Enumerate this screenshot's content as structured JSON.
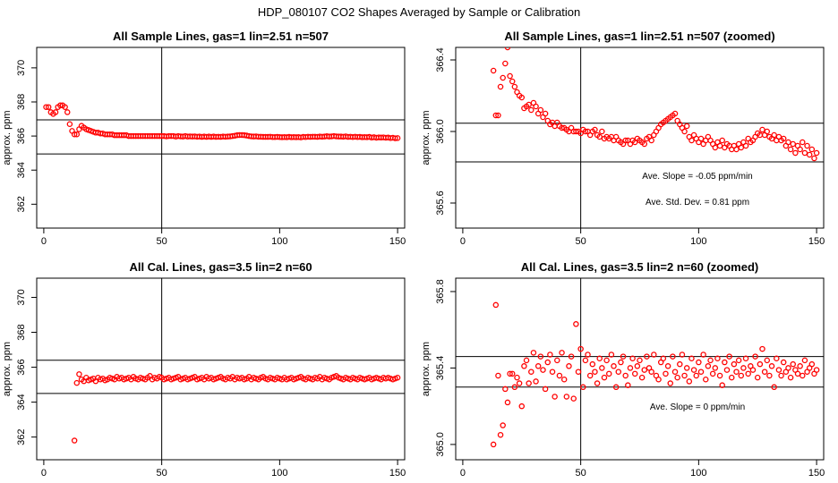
{
  "figure_title": "HDP_080107  CO2 Shapes Averaged by Sample or Calibration",
  "colors": {
    "points": "#ff0000",
    "lines": "#000000"
  },
  "chart_data": [
    {
      "type": "scatter",
      "title": "All Sample Lines, gas=1 lin=2.51 n=507",
      "xlabel": "",
      "ylabel": "approx. ppm",
      "xlim": [
        -3,
        153
      ],
      "ylim": [
        360.6,
        371.2
      ],
      "x_ticks": [
        "0",
        "50",
        "100",
        "150"
      ],
      "y_ticks": [
        "362",
        "364",
        "366",
        "368",
        "370"
      ],
      "vline_x": 50,
      "hlines_y": [
        366.95,
        364.95
      ],
      "annotations": [],
      "x": [
        1,
        2,
        3,
        4,
        5,
        6,
        7,
        8,
        9,
        10,
        11,
        12,
        13,
        14,
        15,
        16,
        17,
        18,
        19,
        20,
        21,
        22,
        23,
        24,
        25,
        26,
        27,
        28,
        29,
        30,
        31,
        32,
        33,
        34,
        35,
        36,
        37,
        38,
        39,
        40,
        41,
        42,
        43,
        44,
        45,
        46,
        47,
        48,
        49,
        50,
        51,
        52,
        53,
        54,
        55,
        56,
        57,
        58,
        59,
        60,
        61,
        62,
        63,
        64,
        65,
        66,
        67,
        68,
        69,
        70,
        71,
        72,
        73,
        74,
        75,
        76,
        77,
        78,
        79,
        80,
        81,
        82,
        83,
        84,
        85,
        86,
        87,
        88,
        89,
        90,
        91,
        92,
        93,
        94,
        95,
        96,
        97,
        98,
        99,
        100,
        101,
        102,
        103,
        104,
        105,
        106,
        107,
        108,
        109,
        110,
        111,
        112,
        113,
        114,
        115,
        116,
        117,
        118,
        119,
        120,
        121,
        122,
        123,
        124,
        125,
        126,
        127,
        128,
        129,
        130,
        131,
        132,
        133,
        134,
        135,
        136,
        137,
        138,
        139,
        140,
        141,
        142,
        143,
        144,
        145,
        146,
        147,
        148,
        149,
        150
      ],
      "y": [
        367.7,
        367.7,
        367.4,
        367.3,
        367.4,
        367.7,
        367.8,
        367.8,
        367.7,
        367.4,
        366.7,
        366.3,
        366.1,
        366.1,
        366.4,
        366.6,
        366.5,
        366.4,
        366.35,
        366.3,
        366.25,
        366.2,
        366.2,
        366.15,
        366.15,
        366.1,
        366.1,
        366.1,
        366.1,
        366.05,
        366.05,
        366.05,
        366.05,
        366.05,
        366.05,
        366.0,
        366.0,
        366.0,
        366.0,
        366.0,
        366.0,
        366.0,
        366.0,
        366.0,
        366.0,
        366.0,
        366.0,
        366.0,
        366.0,
        366.0,
        366.0,
        365.98,
        366.0,
        366.0,
        366.0,
        365.97,
        366.0,
        365.98,
        365.97,
        366.0,
        365.97,
        365.98,
        365.97,
        365.98,
        365.96,
        365.97,
        365.95,
        365.97,
        365.95,
        365.97,
        365.95,
        365.97,
        365.95,
        365.96,
        365.95,
        365.97,
        365.96,
        365.97,
        365.98,
        366.0,
        366.02,
        366.05,
        366.06,
        366.06,
        366.05,
        366.03,
        366.0,
        365.98,
        365.97,
        365.98,
        365.96,
        365.96,
        365.95,
        365.95,
        365.95,
        365.96,
        365.94,
        365.94,
        365.95,
        365.94,
        365.93,
        365.94,
        365.93,
        365.95,
        365.93,
        365.94,
        365.93,
        365.94,
        365.92,
        365.95,
        365.94,
        365.96,
        365.95,
        365.96,
        365.96,
        365.95,
        365.97,
        365.96,
        365.97,
        365.99,
        365.97,
        365.98,
        366.0,
        365.98,
        365.97,
        365.97,
        365.96,
        365.98,
        365.95,
        365.96,
        365.94,
        365.96,
        365.94,
        365.95,
        365.93,
        365.94,
        365.93,
        365.95,
        365.91,
        365.93,
        365.9,
        365.92,
        365.91,
        365.92,
        365.9,
        365.91,
        365.88,
        365.9,
        365.87,
        365.88
      ]
    },
    {
      "type": "scatter",
      "title": "All Sample Lines, gas=1 lin=2.51 n=507 (zoomed)",
      "xlabel": "",
      "ylabel": "approx. ppm",
      "xlim": [
        -3,
        153
      ],
      "ylim": [
        365.46,
        366.47
      ],
      "x_ticks": [
        "0",
        "50",
        "100",
        "150"
      ],
      "y_ticks": [
        "365.6",
        "366.0",
        "366.4"
      ],
      "vline_x": 50,
      "hlines_y": [
        366.046,
        365.83
      ],
      "annotations": [
        "Ave. Slope =  -0.05  ppm/min",
        "Ave. Std. Dev. =  0.81  ppm"
      ],
      "x": [
        13,
        14,
        15,
        16,
        17,
        18,
        19,
        20,
        21,
        22,
        23,
        24,
        25,
        26,
        27,
        28,
        29,
        30,
        31,
        32,
        33,
        34,
        35,
        36,
        37,
        38,
        39,
        40,
        41,
        42,
        43,
        44,
        45,
        46,
        47,
        48,
        49,
        50,
        51,
        52,
        53,
        54,
        55,
        56,
        57,
        58,
        59,
        60,
        61,
        62,
        63,
        64,
        65,
        66,
        67,
        68,
        69,
        70,
        71,
        72,
        73,
        74,
        75,
        76,
        77,
        78,
        79,
        80,
        81,
        82,
        83,
        84,
        85,
        86,
        87,
        88,
        89,
        90,
        91,
        92,
        93,
        94,
        95,
        96,
        97,
        98,
        99,
        100,
        101,
        102,
        103,
        104,
        105,
        106,
        107,
        108,
        109,
        110,
        111,
        112,
        113,
        114,
        115,
        116,
        117,
        118,
        119,
        120,
        121,
        122,
        123,
        124,
        125,
        126,
        127,
        128,
        129,
        130,
        131,
        132,
        133,
        134,
        135,
        136,
        137,
        138,
        139,
        140,
        141,
        142,
        143,
        144,
        145,
        146,
        147,
        148,
        149,
        150
      ],
      "y": [
        366.34,
        366.09,
        366.09,
        366.25,
        366.3,
        366.38,
        366.47,
        366.31,
        366.28,
        366.25,
        366.22,
        366.2,
        366.19,
        366.13,
        366.14,
        366.15,
        366.12,
        366.16,
        366.14,
        366.1,
        366.12,
        366.08,
        366.1,
        366.06,
        366.04,
        366.05,
        366.03,
        366.05,
        366.03,
        366.02,
        366.02,
        366.01,
        366.0,
        366.02,
        366.0,
        366.0,
        366.0,
        365.99,
        366.01,
        366.0,
        366.0,
        365.98,
        366.0,
        366.01,
        365.98,
        365.97,
        366.0,
        365.96,
        365.97,
        365.96,
        365.97,
        365.95,
        365.97,
        365.95,
        365.94,
        365.93,
        365.95,
        365.95,
        365.93,
        365.95,
        365.94,
        365.96,
        365.95,
        365.94,
        365.93,
        365.96,
        365.97,
        365.95,
        365.98,
        366.0,
        366.02,
        366.04,
        366.05,
        366.06,
        366.07,
        366.08,
        366.09,
        366.1,
        366.06,
        366.04,
        366.02,
        366.0,
        366.03,
        365.97,
        365.95,
        365.98,
        365.96,
        365.94,
        365.96,
        365.93,
        365.95,
        365.97,
        365.95,
        365.93,
        365.91,
        365.94,
        365.92,
        365.95,
        365.91,
        365.93,
        365.92,
        365.9,
        365.92,
        365.9,
        365.93,
        365.91,
        365.94,
        365.92,
        365.96,
        365.94,
        365.95,
        365.97,
        365.99,
        365.98,
        366.01,
        365.98,
        366.0,
        365.97,
        365.96,
        365.98,
        365.95,
        365.97,
        365.95,
        365.96,
        365.92,
        365.94,
        365.9,
        365.93,
        365.88,
        365.92,
        365.9,
        365.94,
        365.88,
        365.92,
        365.87,
        365.9,
        365.85,
        365.88
      ]
    },
    {
      "type": "scatter",
      "title": "All Cal. Lines, gas=3.5 lin=2 n=60",
      "xlabel": "",
      "ylabel": "approx. ppm",
      "xlim": [
        -3,
        153
      ],
      "ylim": [
        360.7,
        371.1
      ],
      "x_ticks": [
        "0",
        "50",
        "100",
        "150"
      ],
      "y_ticks": [
        "362",
        "364",
        "366",
        "368",
        "370"
      ],
      "vline_x": 50,
      "hlines_y": [
        366.4,
        364.5
      ],
      "annotations": [],
      "x": [
        13,
        14,
        15,
        16,
        17,
        18,
        19,
        20,
        21,
        22,
        23,
        24,
        25,
        26,
        27,
        28,
        29,
        30,
        31,
        32,
        33,
        34,
        35,
        36,
        37,
        38,
        39,
        40,
        41,
        42,
        43,
        44,
        45,
        46,
        47,
        48,
        49,
        50,
        51,
        52,
        53,
        54,
        55,
        56,
        57,
        58,
        59,
        60,
        61,
        62,
        63,
        64,
        65,
        66,
        67,
        68,
        69,
        70,
        71,
        72,
        73,
        74,
        75,
        76,
        77,
        78,
        79,
        80,
        81,
        82,
        83,
        84,
        85,
        86,
        87,
        88,
        89,
        90,
        91,
        92,
        93,
        94,
        95,
        96,
        97,
        98,
        99,
        100,
        101,
        102,
        103,
        104,
        105,
        106,
        107,
        108,
        109,
        110,
        111,
        112,
        113,
        114,
        115,
        116,
        117,
        118,
        119,
        120,
        121,
        122,
        123,
        124,
        125,
        126,
        127,
        128,
        129,
        130,
        131,
        132,
        133,
        134,
        135,
        136,
        137,
        138,
        139,
        140,
        141,
        142,
        143,
        144,
        145,
        146,
        147,
        148,
        149,
        150
      ],
      "y": [
        361.8,
        365.1,
        365.6,
        365.3,
        365.2,
        365.4,
        365.25,
        365.3,
        365.35,
        365.2,
        365.4,
        365.3,
        365.35,
        365.25,
        365.3,
        365.4,
        365.35,
        365.3,
        365.45,
        365.35,
        365.4,
        365.3,
        365.35,
        365.4,
        365.3,
        365.45,
        365.35,
        365.3,
        365.4,
        365.35,
        365.3,
        365.4,
        365.5,
        365.3,
        365.4,
        365.35,
        365.45,
        365.4,
        365.3,
        365.35,
        365.4,
        365.3,
        365.35,
        365.4,
        365.45,
        365.3,
        365.35,
        365.4,
        365.3,
        365.35,
        365.4,
        365.45,
        365.3,
        365.35,
        365.4,
        365.3,
        365.45,
        365.35,
        365.4,
        365.3,
        365.35,
        365.4,
        365.45,
        365.35,
        365.3,
        365.4,
        365.35,
        365.45,
        365.3,
        365.4,
        365.35,
        365.4,
        365.3,
        365.35,
        365.45,
        365.3,
        365.4,
        365.35,
        365.3,
        365.4,
        365.45,
        365.35,
        365.3,
        365.4,
        365.35,
        365.3,
        365.4,
        365.35,
        365.3,
        365.4,
        365.3,
        365.35,
        365.4,
        365.3,
        365.35,
        365.4,
        365.45,
        365.35,
        365.3,
        365.4,
        365.35,
        365.3,
        365.4,
        365.35,
        365.45,
        365.3,
        365.4,
        365.35,
        365.3,
        365.4,
        365.45,
        365.5,
        365.4,
        365.35,
        365.3,
        365.4,
        365.35,
        365.3,
        365.4,
        365.35,
        365.3,
        365.4,
        365.35,
        365.3,
        365.35,
        365.4,
        365.3,
        365.35,
        365.4,
        365.35,
        365.3,
        365.4,
        365.35,
        365.4,
        365.35,
        365.3,
        365.35,
        365.4
      ]
    },
    {
      "type": "scatter",
      "title": "All Cal. Lines, gas=3.5 lin=2 n=60 (zoomed)",
      "xlabel": "",
      "ylabel": "approx. ppm",
      "xlim": [
        -3,
        153
      ],
      "ylim": [
        364.92,
        365.87
      ],
      "x_ticks": [
        "0",
        "50",
        "100",
        "150"
      ],
      "y_ticks": [
        "365.0",
        "365.4",
        "365.8"
      ],
      "vline_x": 50,
      "hlines_y": [
        365.46,
        365.3
      ],
      "annotations": [
        "Ave. Slope =  0  ppm/min"
      ],
      "x": [
        13,
        14,
        15,
        16,
        17,
        18,
        19,
        20,
        21,
        22,
        23,
        24,
        25,
        26,
        27,
        28,
        29,
        30,
        31,
        32,
        33,
        34,
        35,
        36,
        37,
        38,
        39,
        40,
        41,
        42,
        43,
        44,
        45,
        46,
        47,
        48,
        49,
        50,
        51,
        52,
        53,
        54,
        55,
        56,
        57,
        58,
        59,
        60,
        61,
        62,
        63,
        64,
        65,
        66,
        67,
        68,
        69,
        70,
        71,
        72,
        73,
        74,
        75,
        76,
        77,
        78,
        79,
        80,
        81,
        82,
        83,
        84,
        85,
        86,
        87,
        88,
        89,
        90,
        91,
        92,
        93,
        94,
        95,
        96,
        97,
        98,
        99,
        100,
        101,
        102,
        103,
        104,
        105,
        106,
        107,
        108,
        109,
        110,
        111,
        112,
        113,
        114,
        115,
        116,
        117,
        118,
        119,
        120,
        121,
        122,
        123,
        124,
        125,
        126,
        127,
        128,
        129,
        130,
        131,
        132,
        133,
        134,
        135,
        136,
        137,
        138,
        139,
        140,
        141,
        142,
        143,
        144,
        145,
        146,
        147,
        148,
        149,
        150
      ],
      "y": [
        365.0,
        365.73,
        365.36,
        365.05,
        365.1,
        365.29,
        365.22,
        365.37,
        365.37,
        365.3,
        365.35,
        365.32,
        365.2,
        365.41,
        365.44,
        365.32,
        365.38,
        365.48,
        365.33,
        365.41,
        365.46,
        365.39,
        365.29,
        365.43,
        365.47,
        365.38,
        365.25,
        365.44,
        365.36,
        365.48,
        365.34,
        365.25,
        365.41,
        365.46,
        365.24,
        365.63,
        365.38,
        365.5,
        365.3,
        365.44,
        365.47,
        365.36,
        365.42,
        365.38,
        365.32,
        365.45,
        365.4,
        365.35,
        365.44,
        365.37,
        365.47,
        365.41,
        365.3,
        365.38,
        365.43,
        365.46,
        365.36,
        365.31,
        365.4,
        365.45,
        365.37,
        365.41,
        365.44,
        365.35,
        365.39,
        365.46,
        365.4,
        365.38,
        365.47,
        365.36,
        365.34,
        365.43,
        365.45,
        365.37,
        365.41,
        365.32,
        365.46,
        365.38,
        365.35,
        365.42,
        365.47,
        365.36,
        365.4,
        365.33,
        365.45,
        365.39,
        365.36,
        365.43,
        365.38,
        365.47,
        365.34,
        365.41,
        365.44,
        365.37,
        365.4,
        365.45,
        365.36,
        365.31,
        365.43,
        365.39,
        365.46,
        365.35,
        365.42,
        365.38,
        365.44,
        365.36,
        365.4,
        365.45,
        365.37,
        365.41,
        365.39,
        365.46,
        365.35,
        365.42,
        365.5,
        365.38,
        365.44,
        365.36,
        365.41,
        365.3,
        365.45,
        365.39,
        365.36,
        365.43,
        365.38,
        365.4,
        365.35,
        365.42,
        365.39,
        365.37,
        365.41,
        365.36,
        365.44,
        365.38,
        365.4,
        365.42,
        365.37,
        365.39
      ]
    }
  ]
}
